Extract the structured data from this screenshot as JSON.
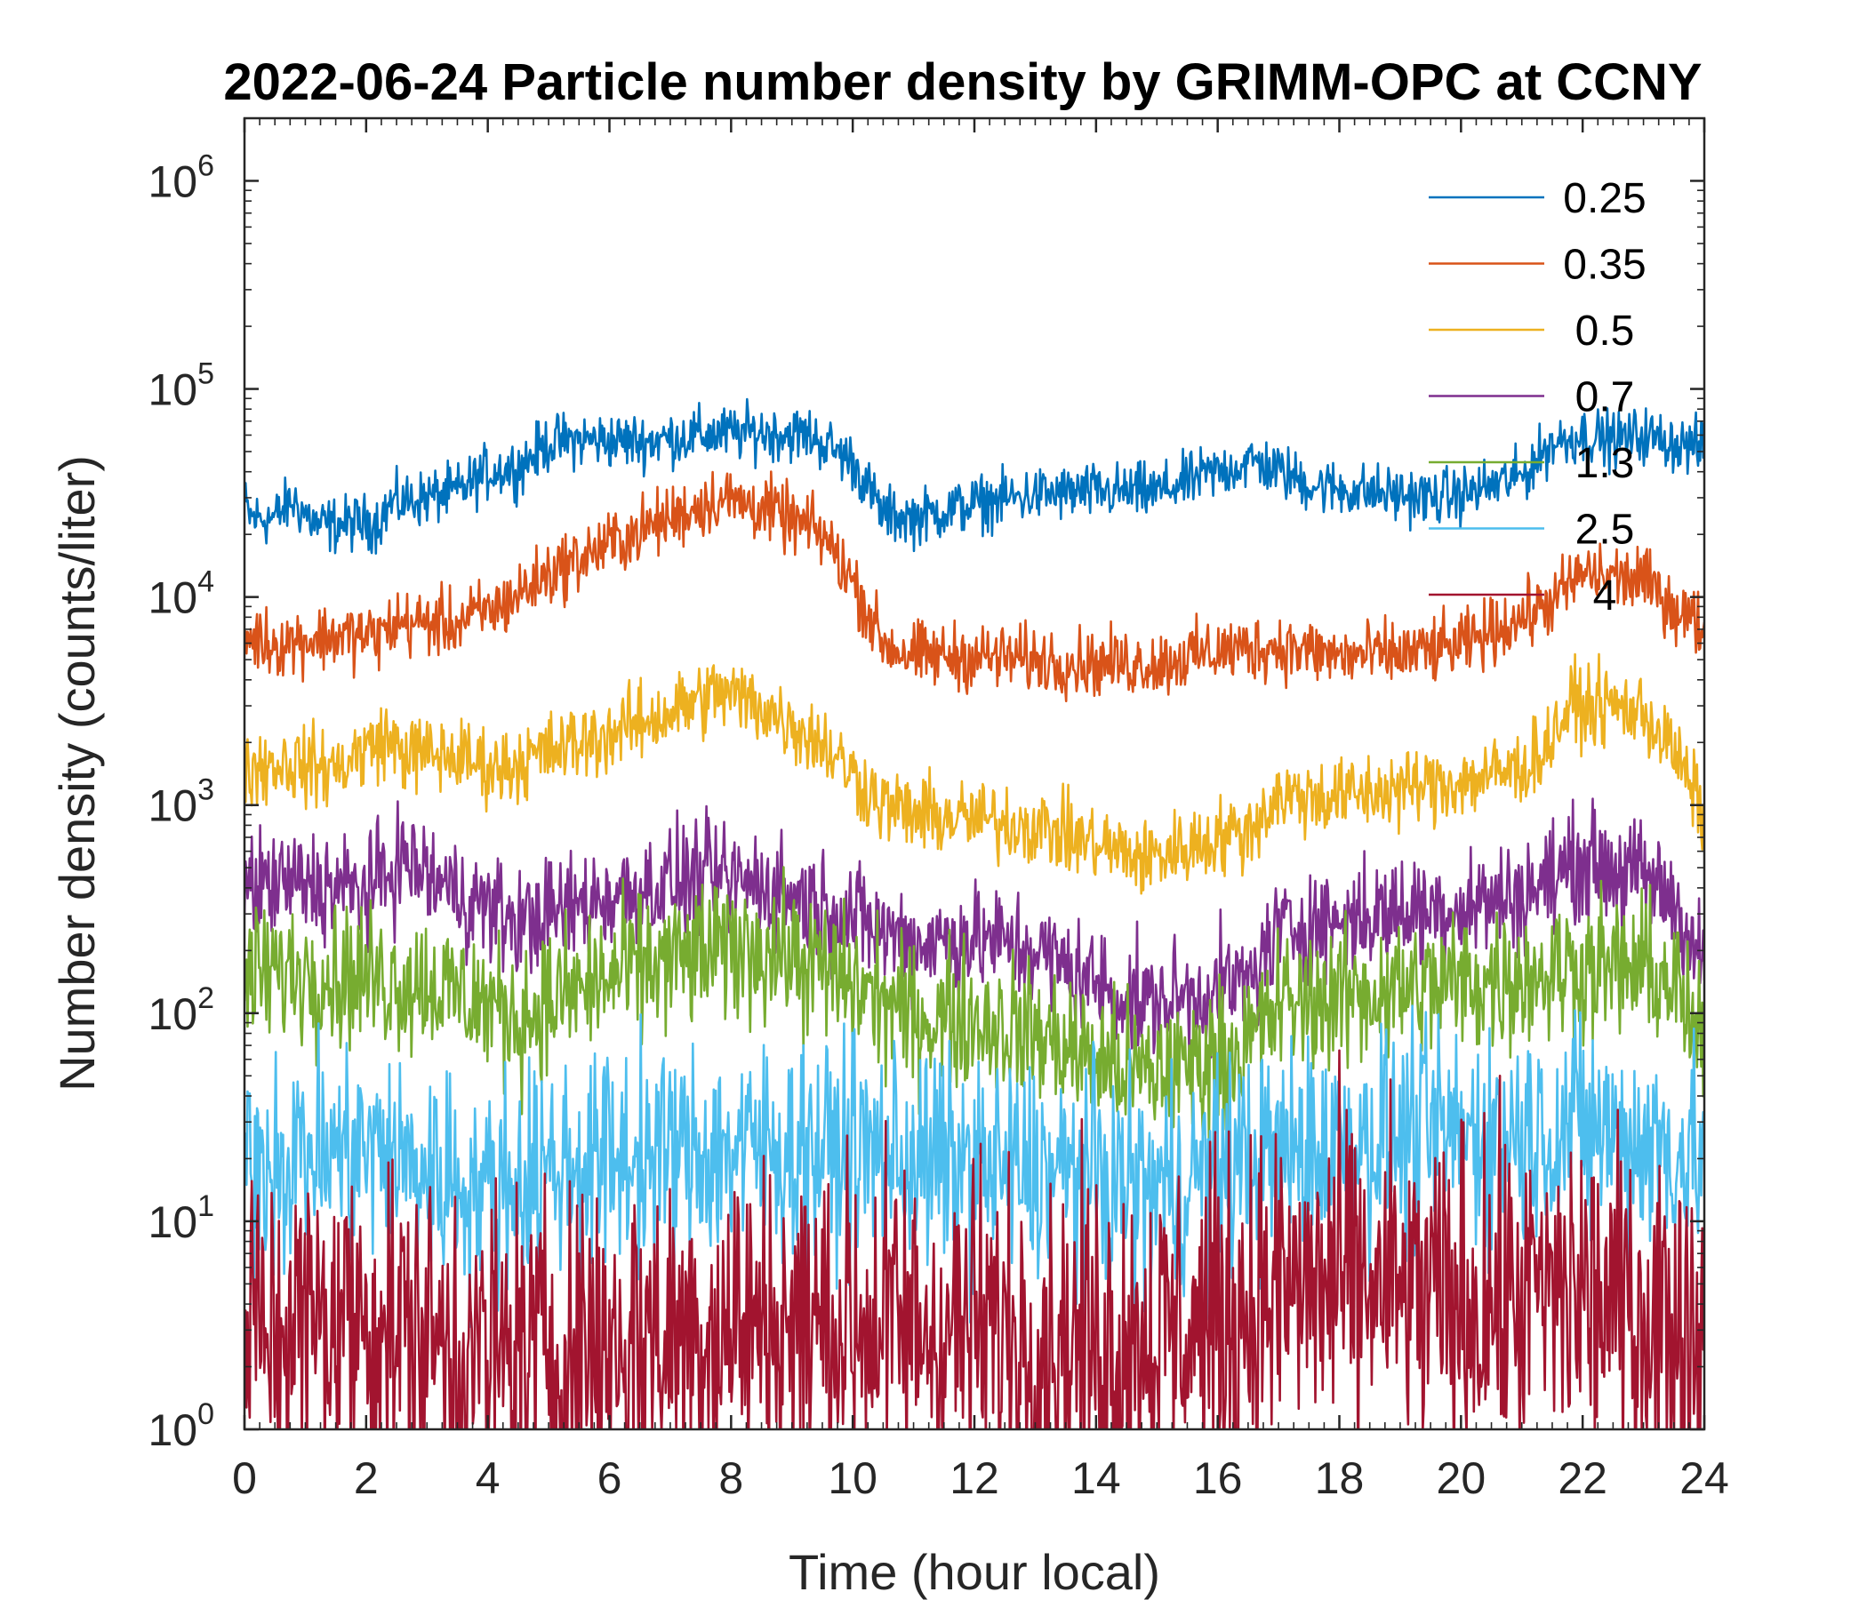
{
  "chart_data": {
    "type": "line",
    "title": "2022-06-24 Particle number density by GRIMM-OPC at CCNY",
    "xlabel": "Time (hour local)",
    "ylabel": "Number density (counts/liter)",
    "xlim": [
      0,
      24
    ],
    "ylim": [
      1,
      2000000
    ],
    "yscale": "log",
    "xticks": [
      0,
      2,
      4,
      6,
      8,
      10,
      12,
      14,
      16,
      18,
      20,
      22,
      24
    ],
    "yticks": [
      {
        "value": 1,
        "base": "10",
        "exp": "0"
      },
      {
        "value": 10,
        "base": "10",
        "exp": "1"
      },
      {
        "value": 100,
        "base": "10",
        "exp": "2"
      },
      {
        "value": 1000,
        "base": "10",
        "exp": "3"
      },
      {
        "value": 10000,
        "base": "10",
        "exp": "4"
      },
      {
        "value": 100000,
        "base": "10",
        "exp": "5"
      },
      {
        "value": 1000000,
        "base": "10",
        "exp": "6"
      }
    ],
    "legend_position": "top-right",
    "series": [
      {
        "name": "0.25",
        "color": "#0072BD",
        "noise": 0.05,
        "x": [
          0,
          0.1,
          0.5,
          0.8,
          1.2,
          2.2,
          2.4,
          3.5,
          4.0,
          4.5,
          5.0,
          5.5,
          6.5,
          7.5,
          8.5,
          9.3,
          10.0,
          10.5,
          11.0,
          12.0,
          13.0,
          14.0,
          15.0,
          16.0,
          16.6,
          17.5,
          18.0,
          19.5,
          20.0,
          21.0,
          21.5,
          22.0,
          22.5,
          23.0,
          23.5,
          24.0
        ],
        "y": [
          28000,
          24000,
          24000,
          29000,
          22000,
          23000,
          28000,
          32000,
          40000,
          42000,
          55000,
          57000,
          56000,
          60000,
          62000,
          60000,
          45000,
          25000,
          24000,
          28000,
          31000,
          32000,
          32000,
          40000,
          45000,
          35000,
          33000,
          30000,
          31000,
          38000,
          55000,
          60000,
          57000,
          60000,
          55000,
          52000
        ]
      },
      {
        "name": "0.35",
        "color": "#D95319",
        "noise": 0.06,
        "x": [
          0,
          0.5,
          1.5,
          2.2,
          2.5,
          3.5,
          4.2,
          5.0,
          6.0,
          7.0,
          7.8,
          8.5,
          9.5,
          10.0,
          10.5,
          11.0,
          12.0,
          13.0,
          14.0,
          15.0,
          16.0,
          17.0,
          18.0,
          19.0,
          20.0,
          21.0,
          21.5,
          22.0,
          23.0,
          23.5,
          24.0
        ],
        "y": [
          6500,
          6000,
          6500,
          6500,
          7500,
          7500,
          9000,
          13000,
          18000,
          24000,
          30000,
          27000,
          20000,
          12000,
          6000,
          5200,
          5200,
          5000,
          4800,
          4800,
          5500,
          5800,
          5200,
          5300,
          5800,
          8000,
          9500,
          13000,
          12000,
          9000,
          7000
        ]
      },
      {
        "name": "0.5",
        "color": "#EDB120",
        "noise": 0.07,
        "x": [
          0,
          0.5,
          1.5,
          2.3,
          2.6,
          3.5,
          4.2,
          5.0,
          6.0,
          7.0,
          7.8,
          8.5,
          9.5,
          10.5,
          11.0,
          12.0,
          13.0,
          14.0,
          14.8,
          16.0,
          16.5,
          17.0,
          18.0,
          19.0,
          20.0,
          21.0,
          21.4,
          21.8,
          22.5,
          23.0,
          23.5,
          24.0
        ],
        "y": [
          1500,
          1600,
          1500,
          2100,
          1800,
          1700,
          1500,
          1800,
          2200,
          2800,
          3500,
          3000,
          2000,
          1000,
          900,
          850,
          800,
          650,
          550,
          700,
          750,
          1100,
          1100,
          1200,
          1300,
          1500,
          1900,
          3000,
          3000,
          2800,
          1800,
          900
        ]
      },
      {
        "name": "0.7",
        "color": "#7E2F8E",
        "noise": 0.1,
        "x": [
          0,
          1.0,
          2.0,
          2.6,
          3.2,
          4.0,
          4.5,
          5.5,
          6.5,
          7.5,
          8.5,
          9.5,
          10.5,
          11.0,
          12.0,
          13.0,
          14.0,
          14.8,
          15.5,
          16.5,
          17.0,
          18.0,
          19.0,
          20.0,
          21.0,
          21.5,
          22.0,
          23.0,
          23.5,
          24.0
        ],
        "y": [
          400,
          420,
          380,
          550,
          420,
          320,
          270,
          330,
          400,
          450,
          420,
          330,
          250,
          220,
          230,
          200,
          140,
          110,
          120,
          140,
          250,
          280,
          310,
          330,
          370,
          450,
          550,
          450,
          350,
          160
        ]
      },
      {
        "name": "1.3",
        "color": "#77AC30",
        "noise": 0.13,
        "x": [
          0,
          1.0,
          2.0,
          3.0,
          4.0,
          4.5,
          5.5,
          6.5,
          7.5,
          8.5,
          9.5,
          10.5,
          11.0,
          12.0,
          13.0,
          14.0,
          14.8,
          15.5,
          16.5,
          17.0,
          18.0,
          19.0,
          20.0,
          21.0,
          22.0,
          23.0,
          23.5,
          24.0
        ],
        "y": [
          150,
          160,
          150,
          140,
          110,
          95,
          130,
          165,
          190,
          210,
          160,
          115,
          95,
          95,
          80,
          60,
          50,
          55,
          70,
          110,
          120,
          130,
          140,
          150,
          170,
          160,
          140,
          60
        ]
      },
      {
        "name": "2.5",
        "color": "#4DBEEE",
        "noise": 0.2,
        "x": [
          0,
          2.0,
          4.0,
          5.0,
          6.0,
          8.0,
          10.0,
          12.0,
          14.0,
          15.0,
          16.0,
          18.0,
          20.0,
          22.0,
          24.0
        ],
        "y": [
          20,
          22,
          14,
          18,
          20,
          22,
          22,
          18,
          16,
          14,
          18,
          24,
          26,
          28,
          20
        ]
      },
      {
        "name": "4",
        "color": "#A2142F",
        "noise": 0.3,
        "x": [
          0,
          2.0,
          4.0,
          6.0,
          8.0,
          10.0,
          12.0,
          14.0,
          16.0,
          17.0,
          18.0,
          20.0,
          22.0,
          24.0
        ],
        "y": [
          3,
          3.5,
          2.2,
          2.6,
          3.2,
          3.3,
          3.0,
          2.6,
          3.3,
          4.5,
          5.0,
          4.0,
          4.5,
          3.0
        ]
      }
    ]
  }
}
